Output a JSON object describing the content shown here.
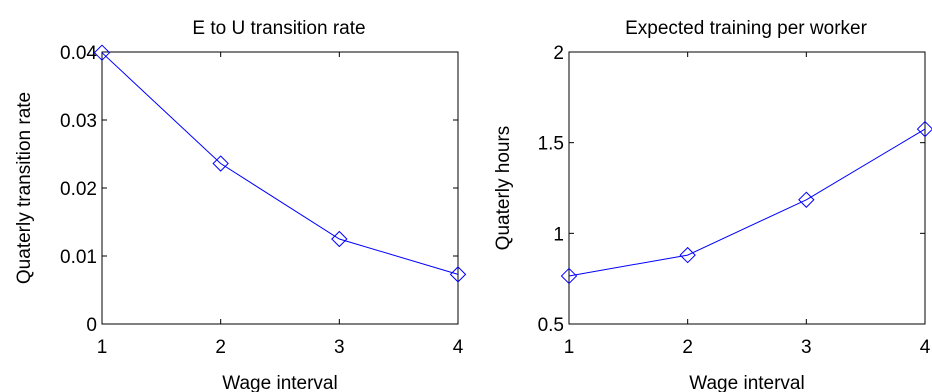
{
  "chart_data": [
    {
      "type": "line",
      "title": "E to U transition rate",
      "xlabel": "Wage interval",
      "ylabel": "Quaterly transition rate",
      "x": [
        1,
        2,
        3,
        4
      ],
      "xlim": [
        1,
        4
      ],
      "ylim": [
        0,
        0.04
      ],
      "xticks": [
        "1",
        "2",
        "3",
        "4"
      ],
      "yticks": [
        "0",
        "0.01",
        "0.02",
        "0.03",
        "0.04"
      ],
      "series": [
        {
          "values": [
            0.0399,
            0.0236,
            0.0125,
            0.0073
          ],
          "color": "#0000ff",
          "marker": "diamond"
        }
      ],
      "grid": false
    },
    {
      "type": "line",
      "title": "Expected training per worker",
      "xlabel": "Wage interval",
      "ylabel": "Quaterly hours",
      "x": [
        1,
        2,
        3,
        4
      ],
      "xlim": [
        1,
        4
      ],
      "ylim": [
        0.5,
        2
      ],
      "xticks": [
        "1",
        "2",
        "3",
        "4"
      ],
      "yticks": [
        "0.5",
        "1",
        "1.5",
        "2"
      ],
      "series": [
        {
          "values": [
            0.765,
            0.88,
            1.185,
            1.575
          ],
          "color": "#0000ff",
          "marker": "diamond"
        }
      ],
      "grid": false
    }
  ]
}
